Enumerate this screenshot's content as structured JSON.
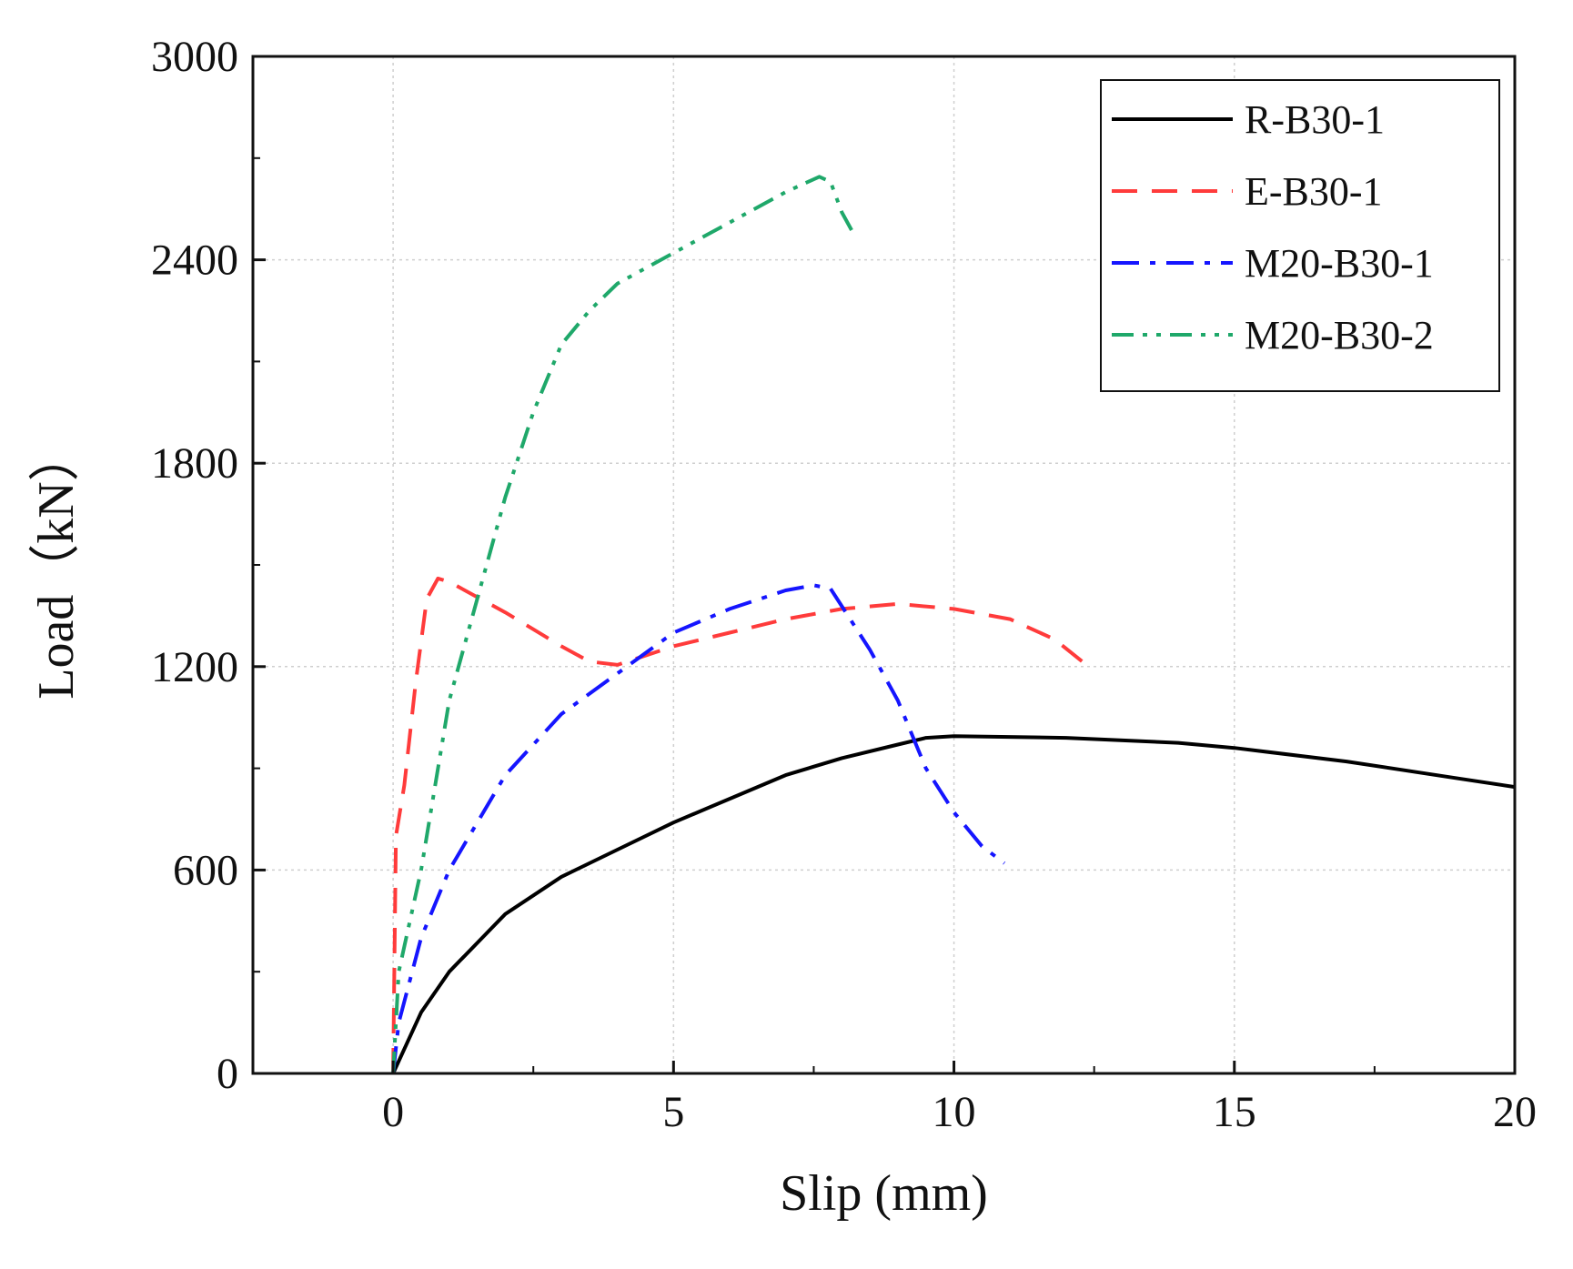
{
  "chart_data": {
    "type": "line",
    "title": "",
    "xlabel": "Slip (mm)",
    "ylabel": "Load（kN）",
    "xlim": [
      -2.5,
      20
    ],
    "ylim": [
      0,
      3000
    ],
    "xticks": [
      0,
      5,
      10,
      15,
      20
    ],
    "yticks": [
      0,
      600,
      1200,
      1800,
      2400,
      3000
    ],
    "xtick_labels": [
      "0",
      "5",
      "10",
      "15",
      "20"
    ],
    "ytick_labels": [
      "0",
      "600",
      "1200",
      "1800",
      "2400",
      "3000"
    ],
    "grid": true,
    "legend_position": "top-right",
    "series": [
      {
        "name": "R-B30-1",
        "color": "#000000",
        "dash": "solid",
        "points": [
          [
            0,
            0
          ],
          [
            0.5,
            180
          ],
          [
            1,
            300
          ],
          [
            2,
            470
          ],
          [
            3,
            580
          ],
          [
            4,
            660
          ],
          [
            5,
            740
          ],
          [
            6,
            810
          ],
          [
            7,
            880
          ],
          [
            8,
            930
          ],
          [
            9,
            970
          ],
          [
            9.5,
            990
          ],
          [
            10,
            995
          ],
          [
            12,
            990
          ],
          [
            14,
            975
          ],
          [
            15,
            960
          ],
          [
            17,
            920
          ],
          [
            19,
            870
          ],
          [
            20,
            845
          ]
        ]
      },
      {
        "name": "E-B30-1",
        "color": "#ff3b3b",
        "dash": "dashed",
        "points": [
          [
            0,
            0
          ],
          [
            0.05,
            700
          ],
          [
            0.2,
            850
          ],
          [
            0.4,
            1150
          ],
          [
            0.6,
            1400
          ],
          [
            0.8,
            1460
          ],
          [
            1,
            1450
          ],
          [
            2,
            1360
          ],
          [
            3,
            1260
          ],
          [
            3.5,
            1215
          ],
          [
            4,
            1205
          ],
          [
            5,
            1260
          ],
          [
            6,
            1300
          ],
          [
            7,
            1340
          ],
          [
            8,
            1370
          ],
          [
            9,
            1385
          ],
          [
            10,
            1370
          ],
          [
            11,
            1340
          ],
          [
            11.8,
            1280
          ],
          [
            12.4,
            1200
          ]
        ]
      },
      {
        "name": "M20-B30-1",
        "color": "#1515ff",
        "dash": "dashdot",
        "points": [
          [
            0,
            0
          ],
          [
            0.1,
            150
          ],
          [
            0.5,
            400
          ],
          [
            1,
            600
          ],
          [
            2,
            880
          ],
          [
            3,
            1060
          ],
          [
            4,
            1180
          ],
          [
            5,
            1300
          ],
          [
            6,
            1370
          ],
          [
            7,
            1425
          ],
          [
            7.5,
            1440
          ],
          [
            7.8,
            1430
          ],
          [
            8.5,
            1250
          ],
          [
            9,
            1100
          ],
          [
            9.5,
            900
          ],
          [
            10,
            770
          ],
          [
            10.5,
            670
          ],
          [
            10.9,
            620
          ]
        ]
      },
      {
        "name": "M20-B30-2",
        "color": "#1fa86a",
        "dash": "dashdotdot",
        "points": [
          [
            0,
            0
          ],
          [
            0.1,
            300
          ],
          [
            0.5,
            600
          ],
          [
            1,
            1100
          ],
          [
            1.5,
            1400
          ],
          [
            2,
            1700
          ],
          [
            2.5,
            1950
          ],
          [
            3,
            2150
          ],
          [
            3.5,
            2250
          ],
          [
            4,
            2330
          ],
          [
            5,
            2420
          ],
          [
            6,
            2510
          ],
          [
            7,
            2600
          ],
          [
            7.6,
            2645
          ],
          [
            7.8,
            2630
          ],
          [
            8,
            2540
          ],
          [
            8.2,
            2480
          ]
        ]
      }
    ]
  }
}
